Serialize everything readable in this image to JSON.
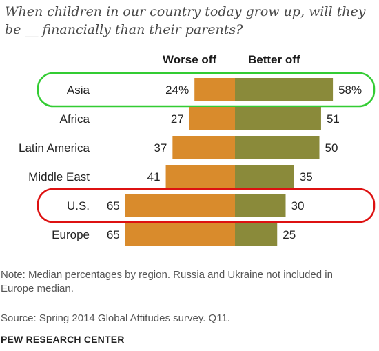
{
  "title": "When children in our country today grow up, will they be __ financially than their parents?",
  "chart_data": {
    "type": "bar",
    "categories": [
      "Asia",
      "Africa",
      "Latin America",
      "Middle East",
      "U.S.",
      "Europe"
    ],
    "series": [
      {
        "name": "Worse off",
        "values": [
          24,
          27,
          37,
          41,
          65,
          65
        ],
        "labels": [
          "24%",
          "27",
          "37",
          "41",
          "65",
          "65"
        ]
      },
      {
        "name": "Better off",
        "values": [
          58,
          51,
          50,
          35,
          30,
          25
        ],
        "labels": [
          "58%",
          "51",
          "50",
          "35",
          "30",
          "25"
        ]
      }
    ],
    "highlight": {
      "Asia": "#33cc33",
      "U.S.": "#dd1111"
    },
    "colors": {
      "Worse off": "#d98b2c",
      "Better off": "#8a8a3a"
    }
  },
  "note": "Note: Median percentages by region. Russia and Ukraine not included in Europe median.",
  "source": "Source: Spring 2014 Global Attitudes survey. Q11.",
  "brand": "PEW RESEARCH CENTER"
}
